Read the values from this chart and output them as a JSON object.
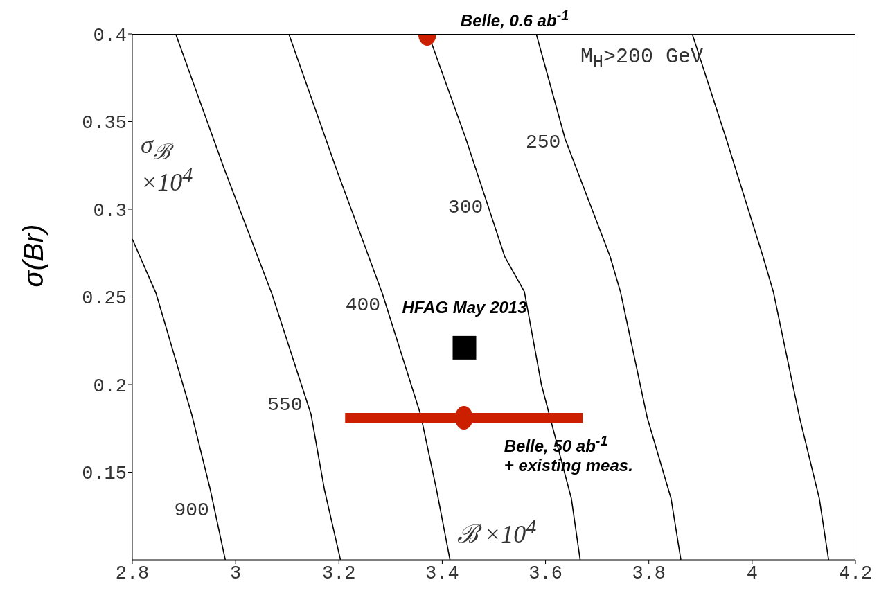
{
  "chart_data": {
    "type": "line",
    "ylabel": "σ(Br)",
    "xlim": [
      2.8,
      4.2
    ],
    "ylim": [
      0.1,
      0.4
    ],
    "xticks": [
      2.8,
      3,
      3.2,
      3.4,
      3.6,
      3.8,
      4,
      4.2
    ],
    "yticks": [
      0.15,
      0.2,
      0.25,
      0.3,
      0.35,
      0.4
    ],
    "series": [
      {
        "name": "900",
        "color": "#000000",
        "x": [
          2.8,
          2.846,
          2.915,
          2.951,
          2.98
        ],
        "values": [
          0.283,
          0.252,
          0.183,
          0.14,
          0.1
        ]
      },
      {
        "name": "550",
        "color": "#000000",
        "x": [
          2.884,
          2.978,
          3.07,
          3.146,
          3.172,
          3.203
        ],
        "values": [
          0.4,
          0.323,
          0.252,
          0.183,
          0.14,
          0.1
        ]
      },
      {
        "name": "400",
        "color": "#000000",
        "x": [
          3.103,
          3.195,
          3.284,
          3.358,
          3.389,
          3.415
        ],
        "values": [
          0.4,
          0.323,
          0.252,
          0.183,
          0.14,
          0.1
        ]
      },
      {
        "name": "300",
        "color": "#000000",
        "x": [
          3.373,
          3.446,
          3.521,
          3.559,
          3.592,
          3.65,
          3.667
        ],
        "values": [
          0.4,
          0.34,
          0.273,
          0.253,
          0.2,
          0.135,
          0.1
        ]
      },
      {
        "name": "250",
        "color": "#000000",
        "x": [
          3.582,
          3.638,
          3.725,
          3.745,
          3.797,
          3.843,
          3.862
        ],
        "values": [
          0.4,
          0.34,
          0.273,
          0.253,
          0.181,
          0.135,
          0.1
        ]
      },
      {
        "color": "#000000",
        "x": [
          3.884,
          3.95,
          4.021,
          4.041,
          4.092,
          4.13,
          4.148
        ],
        "values": [
          0.4,
          0.34,
          0.273,
          0.253,
          0.181,
          0.135,
          0.1
        ]
      },
      {
        "type": "scatter",
        "marker": "circle",
        "color": "#cc1f00",
        "x": [
          3.371
        ],
        "values": [
          0.4
        ]
      },
      {
        "type": "scatter",
        "marker": "square",
        "color": "#000000",
        "x": [
          3.443
        ],
        "values": [
          0.221
        ]
      },
      {
        "type": "scatter",
        "marker": "circle",
        "color": "#cc1f00",
        "x": [
          3.442
        ],
        "values": [
          0.181
        ],
        "xerrors": [
          0.23
        ]
      }
    ],
    "annotations": [
      {
        "text": "Belle, 0.6 ab$^{-1}$",
        "x": 3.371,
        "y": 0.4
      },
      {
        "text": "HFAG May 2013",
        "x": 3.443,
        "y": 0.221
      },
      {
        "text": "Belle, 50 ab$^{-1}$\n+ existing meas.",
        "x": 3.442,
        "y": 0.181
      },
      "M$_{H}$>200 GeV",
      "σ$_{ℬ}$\n×10$^{4}$",
      "ℬ ×10$^{4}$"
    ]
  }
}
